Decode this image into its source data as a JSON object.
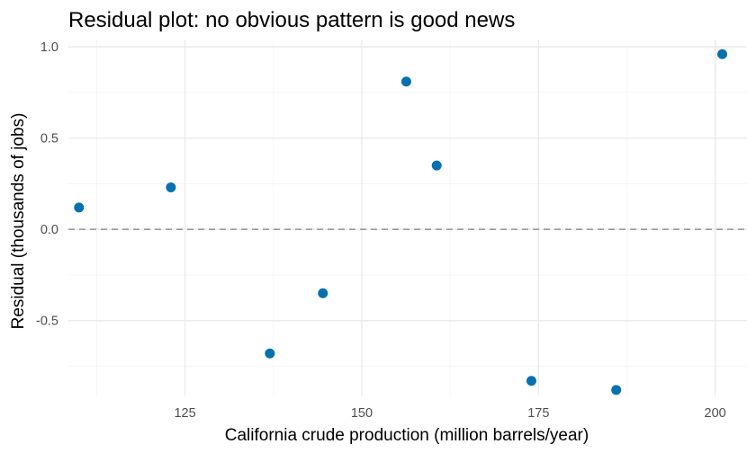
{
  "chart_data": {
    "type": "scatter",
    "title": "Residual plot: no obvious pattern is good news",
    "xlabel": "California crude production (million barrels/year)",
    "ylabel": "Residual (thousands of jobs)",
    "xlim": [
      108.5,
      204.5
    ],
    "ylim": [
      -0.91,
      1.04
    ],
    "x_ticks": [
      125,
      150,
      175,
      200
    ],
    "x_tick_labels": [
      "125",
      "150",
      "175",
      "200"
    ],
    "y_ticks": [
      -0.5,
      0.0,
      0.5,
      1.0
    ],
    "y_tick_labels": [
      "-0.5",
      "0.0",
      "0.5",
      "1.0"
    ],
    "grid": true,
    "reference_line": {
      "y": 0,
      "style": "dashed",
      "color": "#9a9a9a"
    },
    "point_color": "#0571b0",
    "points": [
      {
        "x": 110.0,
        "y": 0.12
      },
      {
        "x": 123.0,
        "y": 0.23
      },
      {
        "x": 137.0,
        "y": -0.68
      },
      {
        "x": 144.5,
        "y": -0.35
      },
      {
        "x": 156.3,
        "y": 0.81
      },
      {
        "x": 160.6,
        "y": 0.35
      },
      {
        "x": 174.0,
        "y": -0.83
      },
      {
        "x": 186.0,
        "y": -0.88
      },
      {
        "x": 201.0,
        "y": 0.96
      }
    ]
  }
}
